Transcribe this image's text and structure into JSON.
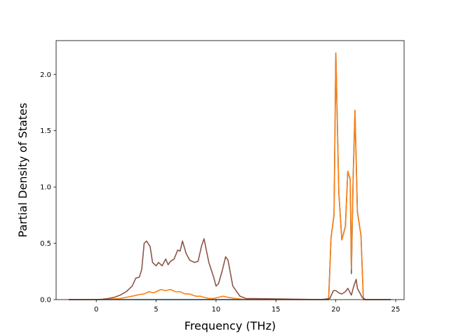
{
  "chart_data": {
    "type": "line",
    "title": "",
    "xlabel": "Frequency (THz)",
    "ylabel": "Partial Density of States",
    "xlim": [
      -3.35,
      25.7
    ],
    "ylim": [
      0,
      2.3
    ],
    "xticks": [
      {
        "value": 0,
        "label": "0"
      },
      {
        "value": 5,
        "label": "5"
      },
      {
        "value": 10,
        "label": "10"
      },
      {
        "value": 15,
        "label": "15"
      },
      {
        "value": 20,
        "label": "20"
      },
      {
        "value": 25,
        "label": "25"
      }
    ],
    "yticks": [
      {
        "value": 0.0,
        "label": "0.0"
      },
      {
        "value": 0.5,
        "label": "0.5"
      },
      {
        "value": 1.0,
        "label": "1.0"
      },
      {
        "value": 1.5,
        "label": "1.5"
      },
      {
        "value": 2.0,
        "label": "2.0"
      }
    ],
    "grid": false,
    "legend": "none",
    "series": [
      {
        "color": "#1f77b4",
        "x": [
          -2.3,
          18.8,
          19.4,
          19.6,
          19.85,
          20.0,
          20.25,
          20.5,
          20.8,
          21.0,
          21.2,
          21.3,
          21.45,
          21.6,
          21.8,
          22.1,
          22.3,
          22.5,
          24.6
        ],
        "y": [
          0,
          0,
          0,
          0.55,
          0.75,
          2.19,
          0.95,
          0.53,
          0.65,
          1.14,
          1.07,
          0.23,
          1.1,
          1.68,
          0.78,
          0.57,
          0,
          0,
          0
        ]
      },
      {
        "color": "#ff7f0e",
        "x": [
          -2.3,
          0.0,
          1.0,
          2.0,
          3.0,
          3.6,
          4.0,
          4.4,
          4.8,
          5.0,
          5.4,
          5.8,
          6.2,
          6.6,
          7.0,
          7.4,
          7.8,
          8.3,
          8.7,
          9.0,
          9.4,
          9.8,
          10.2,
          10.6,
          11.0,
          11.6,
          12.5,
          18.8,
          19.4,
          19.6,
          19.85,
          20.0,
          20.25,
          20.5,
          20.8,
          21.0,
          21.2,
          21.3,
          21.45,
          21.6,
          21.8,
          22.1,
          22.3,
          22.5,
          24.6
        ],
        "y": [
          0,
          0,
          0.003,
          0.01,
          0.03,
          0.045,
          0.05,
          0.07,
          0.06,
          0.07,
          0.09,
          0.08,
          0.09,
          0.07,
          0.07,
          0.05,
          0.05,
          0.03,
          0.03,
          0.02,
          0.01,
          0.01,
          0.02,
          0.03,
          0.02,
          0.01,
          0,
          0,
          0,
          0.55,
          0.75,
          2.19,
          0.95,
          0.53,
          0.65,
          1.14,
          1.07,
          0.27,
          1.1,
          1.68,
          0.78,
          0.57,
          0,
          0,
          0
        ]
      },
      {
        "color": "#8c564b",
        "x": [
          -2.3,
          0.0,
          0.5,
          1.0,
          1.5,
          2.0,
          2.5,
          3.0,
          3.3,
          3.6,
          3.8,
          4.0,
          4.2,
          4.5,
          4.7,
          5.0,
          5.2,
          5.5,
          5.8,
          6.0,
          6.2,
          6.5,
          6.8,
          7.0,
          7.2,
          7.5,
          7.8,
          8.2,
          8.5,
          8.8,
          9.0,
          9.4,
          9.8,
          10.0,
          10.2,
          10.5,
          10.8,
          11.0,
          11.4,
          12.0,
          12.5,
          18.8,
          19.5,
          19.8,
          20.0,
          20.25,
          20.5,
          20.8,
          21.0,
          21.3,
          21.5,
          21.7,
          21.8,
          22.0,
          22.2,
          22.5,
          24.6
        ],
        "y": [
          0,
          0,
          0.003,
          0.01,
          0.02,
          0.04,
          0.07,
          0.12,
          0.19,
          0.2,
          0.27,
          0.5,
          0.52,
          0.47,
          0.33,
          0.3,
          0.33,
          0.3,
          0.36,
          0.31,
          0.34,
          0.36,
          0.44,
          0.43,
          0.52,
          0.41,
          0.35,
          0.33,
          0.34,
          0.48,
          0.54,
          0.33,
          0.2,
          0.12,
          0.14,
          0.25,
          0.38,
          0.35,
          0.12,
          0.03,
          0.01,
          0,
          0.01,
          0.08,
          0.08,
          0.06,
          0.05,
          0.07,
          0.1,
          0.04,
          0.12,
          0.18,
          0.1,
          0.06,
          0.02,
          0,
          0
        ]
      }
    ]
  }
}
